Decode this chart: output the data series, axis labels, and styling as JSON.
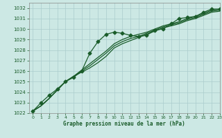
{
  "title": "Graphe pression niveau de la mer (hPa)",
  "bg_color": "#cce8e4",
  "grid_color": "#aacccc",
  "line_color": "#1a5c2a",
  "xlim": [
    -0.5,
    23
  ],
  "ylim": [
    1022,
    1032.5
  ],
  "xticks": [
    0,
    1,
    2,
    3,
    4,
    5,
    6,
    7,
    8,
    9,
    10,
    11,
    12,
    13,
    14,
    15,
    16,
    17,
    18,
    19,
    20,
    21,
    22,
    23
  ],
  "yticks": [
    1022,
    1023,
    1024,
    1025,
    1026,
    1027,
    1028,
    1029,
    1030,
    1031,
    1032
  ],
  "series_linear1": {
    "x": [
      0,
      1,
      2,
      3,
      4,
      5,
      6,
      7,
      8,
      9,
      10,
      11,
      12,
      13,
      14,
      15,
      16,
      17,
      18,
      19,
      20,
      21,
      22,
      23
    ],
    "y": [
      1022.2,
      1022.7,
      1023.4,
      1024.2,
      1025.0,
      1025.5,
      1026.1,
      1026.7,
      1027.3,
      1027.9,
      1028.6,
      1029.0,
      1029.3,
      1029.5,
      1029.7,
      1030.0,
      1030.3,
      1030.5,
      1030.7,
      1031.0,
      1031.2,
      1031.5,
      1031.8,
      1031.9
    ]
  },
  "series_linear2": {
    "x": [
      0,
      1,
      2,
      3,
      4,
      5,
      6,
      7,
      8,
      9,
      10,
      11,
      12,
      13,
      14,
      15,
      16,
      17,
      18,
      19,
      20,
      21,
      22,
      23
    ],
    "y": [
      1022.2,
      1022.7,
      1023.4,
      1024.2,
      1025.0,
      1025.5,
      1026.0,
      1026.5,
      1027.1,
      1027.7,
      1028.4,
      1028.8,
      1029.1,
      1029.3,
      1029.6,
      1029.9,
      1030.2,
      1030.4,
      1030.6,
      1030.9,
      1031.1,
      1031.4,
      1031.7,
      1031.8
    ]
  },
  "series_linear3": {
    "x": [
      0,
      1,
      2,
      3,
      4,
      5,
      6,
      7,
      8,
      9,
      10,
      11,
      12,
      13,
      14,
      15,
      16,
      17,
      18,
      19,
      20,
      21,
      22,
      23
    ],
    "y": [
      1022.2,
      1022.7,
      1023.4,
      1024.2,
      1025.0,
      1025.5,
      1025.9,
      1026.3,
      1026.8,
      1027.4,
      1028.2,
      1028.6,
      1028.9,
      1029.2,
      1029.5,
      1029.8,
      1030.1,
      1030.3,
      1030.5,
      1030.8,
      1031.0,
      1031.3,
      1031.6,
      1031.7
    ]
  },
  "series_humped": {
    "x": [
      0,
      1,
      2,
      3,
      4,
      5,
      6,
      7,
      8,
      9,
      10,
      11,
      12,
      13,
      14,
      15,
      16,
      17,
      18,
      19,
      20,
      21,
      22,
      23
    ],
    "y": [
      1022.2,
      1023.0,
      1023.7,
      1024.3,
      1025.0,
      1025.4,
      1026.0,
      1027.7,
      1028.8,
      1029.5,
      1029.7,
      1029.6,
      1029.4,
      1029.3,
      1029.4,
      1029.9,
      1030.0,
      1030.5,
      1031.0,
      1031.1,
      1031.2,
      1031.6,
      1031.9,
      1031.9
    ]
  }
}
